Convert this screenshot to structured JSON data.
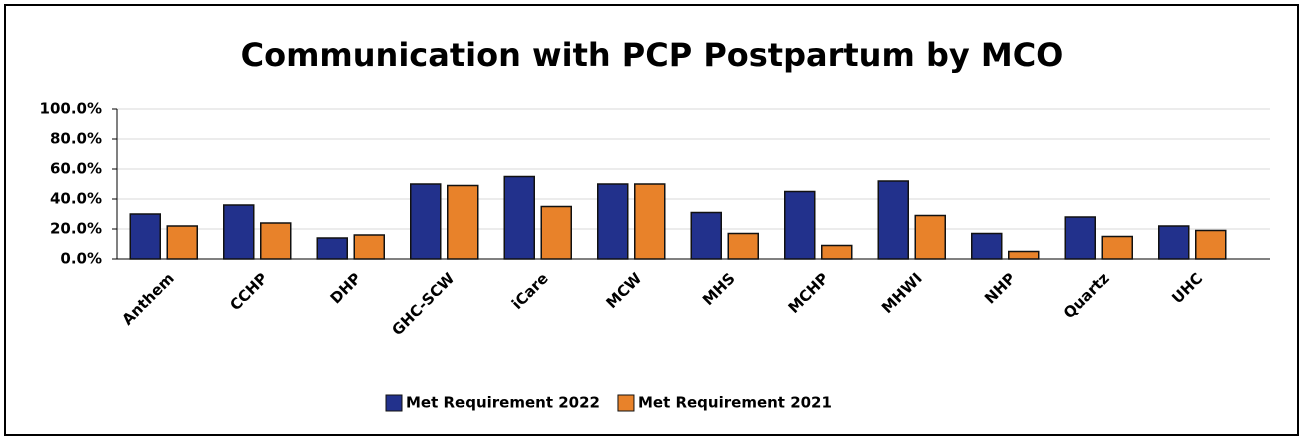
{
  "chart_data": {
    "type": "bar",
    "title": "Communication with PCP Postpartum by MCO",
    "categories": [
      "Anthem",
      "CCHP",
      "DHP",
      "GHC-SCW",
      "iCare",
      "MCW",
      "MHS",
      "MCHP",
      "MHWI",
      "NHP",
      "Quartz",
      "UHC"
    ],
    "series": [
      {
        "name": "Met Requirement 2022",
        "color": "#22318c",
        "values": [
          30,
          36,
          14,
          50,
          55,
          50,
          31,
          45,
          52,
          17,
          28,
          22
        ]
      },
      {
        "name": "Met Requirement 2021",
        "color": "#e8822a",
        "values": [
          22,
          24,
          16,
          49,
          35,
          50,
          17,
          9,
          29,
          5,
          15,
          19
        ]
      }
    ],
    "ylim": [
      0,
      100
    ],
    "yticks": [
      {
        "value": 0,
        "label": "0.0%"
      },
      {
        "value": 20,
        "label": "20.0%"
      },
      {
        "value": 40,
        "label": "40.0%"
      },
      {
        "value": 60,
        "label": "60.0%"
      },
      {
        "value": 80,
        "label": "80.0%"
      },
      {
        "value": 100,
        "label": "100.0%"
      }
    ],
    "grid": true,
    "legend": "bottom"
  }
}
